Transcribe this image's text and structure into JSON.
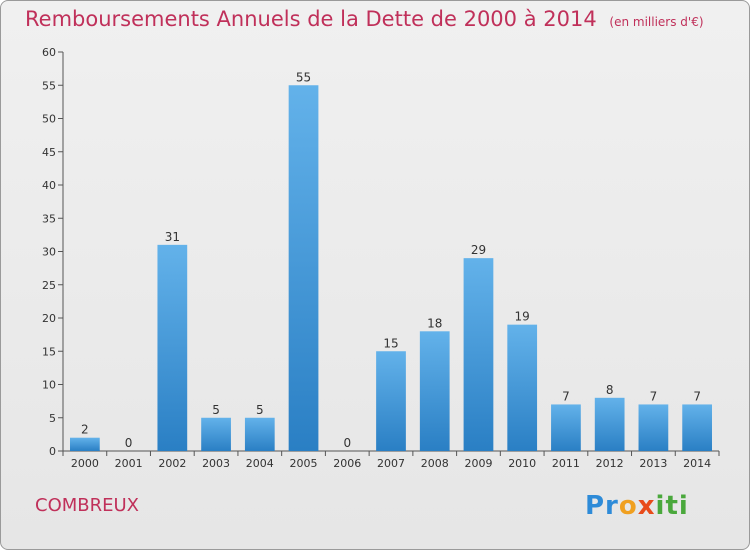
{
  "header": {
    "title": "Remboursements Annuels de la Dette de 2000 à 2014",
    "unit": "(en milliers d'€)"
  },
  "footer": {
    "commune": "COMBREUX",
    "logo": "Proxiti"
  },
  "colors": {
    "title": "#c0305a",
    "bar_top": "#63b2ea",
    "bar_bottom": "#2a7fc4"
  },
  "chart_data": {
    "type": "bar",
    "title": "Remboursements Annuels de la Dette de 2000 à 2014",
    "subtitle": "(en milliers d'€)",
    "categories": [
      "2000",
      "2001",
      "2002",
      "2003",
      "2004",
      "2005",
      "2006",
      "2007",
      "2008",
      "2009",
      "2010",
      "2011",
      "2012",
      "2013",
      "2014"
    ],
    "values": [
      2,
      0,
      31,
      5,
      5,
      55,
      0,
      15,
      18,
      29,
      19,
      7,
      8,
      7,
      7
    ],
    "xlabel": "",
    "ylabel": "",
    "ylim": [
      0,
      60
    ],
    "yticks": [
      0,
      5,
      10,
      15,
      20,
      25,
      30,
      35,
      40,
      45,
      50,
      55,
      60
    ],
    "grid": false,
    "legend": "none"
  }
}
